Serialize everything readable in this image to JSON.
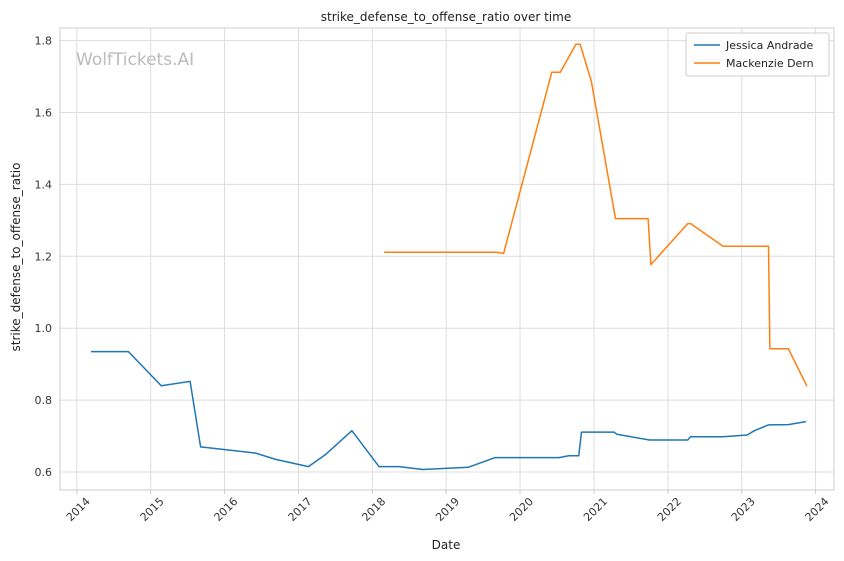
{
  "chart_data": {
    "type": "line",
    "title": "strike_defense_to_offense_ratio over time",
    "xlabel": "Date",
    "ylabel": "strike_defense_to_offense_ratio",
    "watermark": "WolfTickets.AI",
    "xlim": [
      "2013-10-10",
      "2024-04-01"
    ],
    "ylim": [
      0.55,
      1.835
    ],
    "x_ticks": [
      "2014-01-01",
      "2015-01-01",
      "2016-01-01",
      "2017-01-01",
      "2018-01-01",
      "2019-01-01",
      "2020-01-01",
      "2021-01-01",
      "2022-01-01",
      "2023-01-01",
      "2024-01-01"
    ],
    "x_tick_labels": [
      "2014",
      "2015",
      "2016",
      "2017",
      "2018",
      "2019",
      "2020",
      "2021",
      "2022",
      "2023",
      "2024"
    ],
    "y_ticks": [
      0.6,
      0.8,
      1.0,
      1.2,
      1.4,
      1.6,
      1.8
    ],
    "y_tick_labels": [
      "0.6",
      "0.8",
      "1.0",
      "1.2",
      "1.4",
      "1.6",
      "1.8"
    ],
    "grid": true,
    "legend_position": "top-right",
    "series": [
      {
        "name": "Jessica Andrade",
        "color": "#1f77b4",
        "points": [
          [
            "2014-03-15",
            0.935
          ],
          [
            "2014-09-13",
            0.935
          ],
          [
            "2015-02-22",
            0.84
          ],
          [
            "2015-07-15",
            0.852
          ],
          [
            "2015-09-05",
            0.67
          ],
          [
            "2016-06-01",
            0.653
          ],
          [
            "2016-09-10",
            0.635
          ],
          [
            "2017-02-19",
            0.615
          ],
          [
            "2017-05-13",
            0.648
          ],
          [
            "2017-09-22",
            0.715
          ],
          [
            "2018-02-03",
            0.615
          ],
          [
            "2018-05-12",
            0.615
          ],
          [
            "2018-09-08",
            0.607
          ],
          [
            "2019-04-20",
            0.613
          ],
          [
            "2019-08-31",
            0.64
          ],
          [
            "2020-07-11",
            0.64
          ],
          [
            "2020-08-29",
            0.645
          ],
          [
            "2020-10-17",
            0.645
          ],
          [
            "2020-10-31",
            0.711
          ],
          [
            "2021-04-10",
            0.711
          ],
          [
            "2021-04-24",
            0.705
          ],
          [
            "2021-10-02",
            0.689
          ],
          [
            "2022-04-09",
            0.689
          ],
          [
            "2022-04-23",
            0.698
          ],
          [
            "2022-10-01",
            0.698
          ],
          [
            "2023-01-28",
            0.703
          ],
          [
            "2023-03-04",
            0.715
          ],
          [
            "2023-05-13",
            0.731
          ],
          [
            "2023-08-19",
            0.732
          ],
          [
            "2023-11-11",
            0.74
          ]
        ]
      },
      {
        "name": "Mackenzie Dern",
        "color": "#ff7f0e",
        "points": [
          [
            "2018-03-03",
            1.211
          ],
          [
            "2019-09-07",
            1.211
          ],
          [
            "2019-10-12",
            1.208
          ],
          [
            "2020-06-06",
            1.712
          ],
          [
            "2020-07-18",
            1.712
          ],
          [
            "2020-10-03",
            1.79
          ],
          [
            "2020-10-24",
            1.79
          ],
          [
            "2020-12-19",
            1.686
          ],
          [
            "2021-04-17",
            1.305
          ],
          [
            "2021-09-25",
            1.305
          ],
          [
            "2021-10-09",
            1.177
          ],
          [
            "2022-04-09",
            1.291
          ],
          [
            "2022-04-23",
            1.291
          ],
          [
            "2022-10-01",
            1.228
          ],
          [
            "2023-04-08",
            1.228
          ],
          [
            "2023-05-13",
            1.228
          ],
          [
            "2023-05-20",
            0.943
          ],
          [
            "2023-08-19",
            0.943
          ],
          [
            "2023-11-18",
            0.84
          ]
        ]
      }
    ]
  }
}
